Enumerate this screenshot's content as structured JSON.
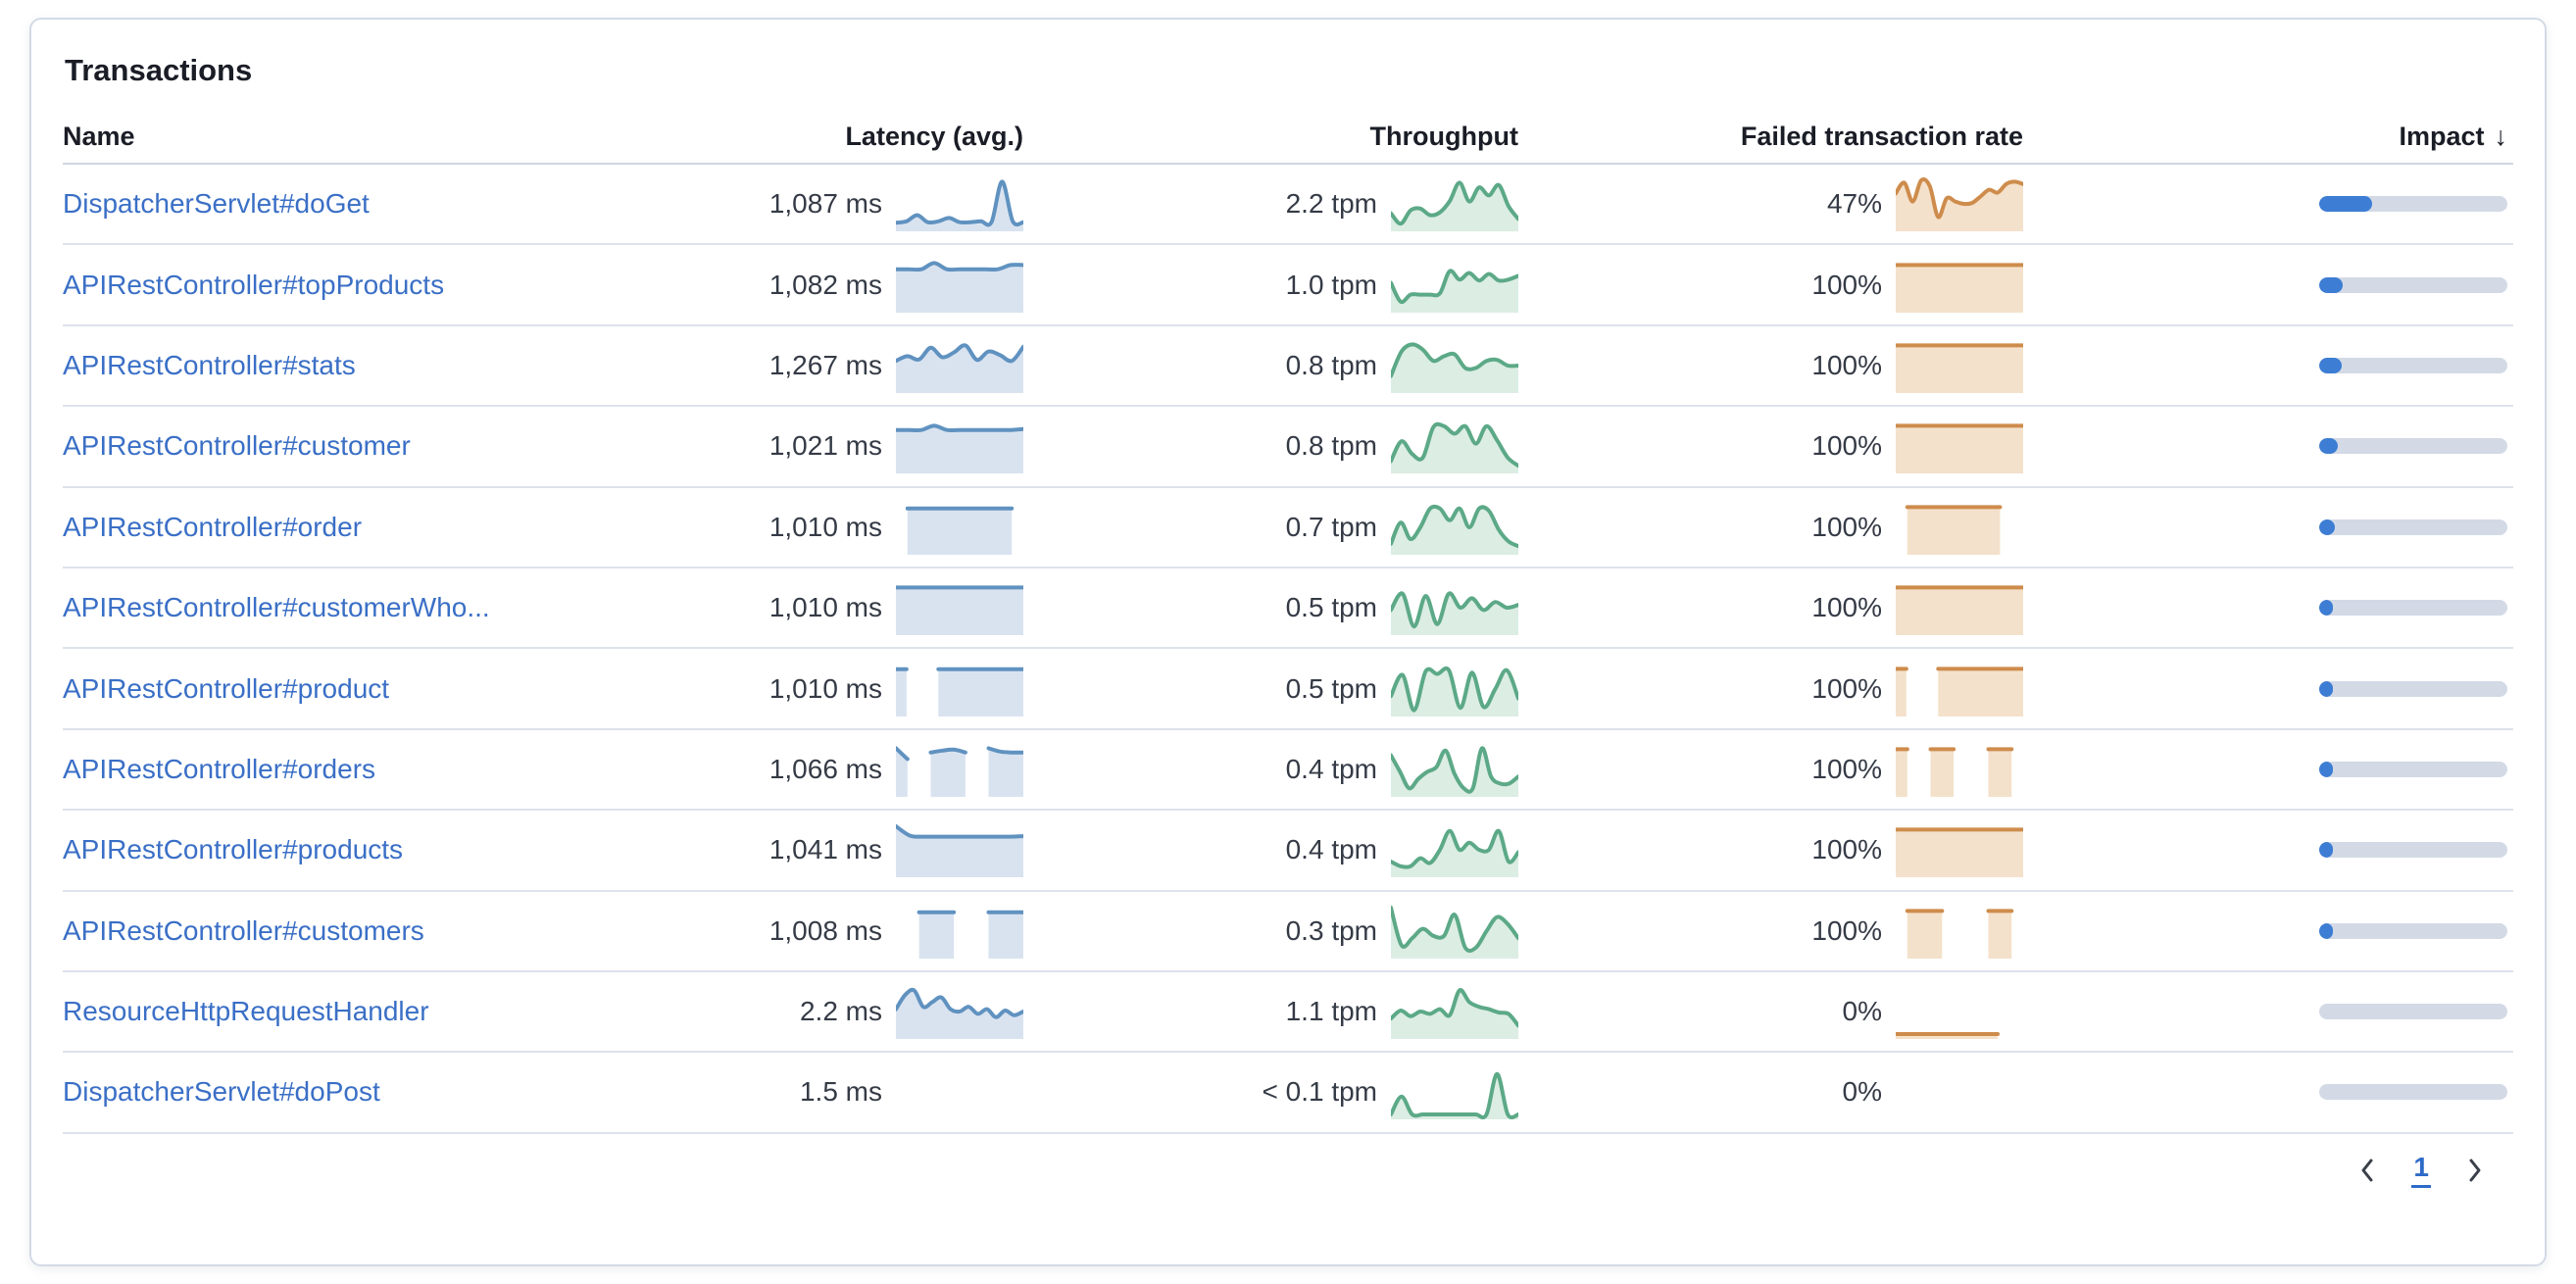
{
  "panel": {
    "title": "Transactions"
  },
  "columns": {
    "name": "Name",
    "latency": "Latency (avg.)",
    "throughput": "Throughput",
    "failed": "Failed transaction rate",
    "impact": "Impact",
    "sort_glyph": "↓"
  },
  "colors": {
    "link": "#3a6fc6",
    "latency_line": "#6092C0",
    "latency_fill": "#D9E3F0",
    "throughput_line": "#5CA987",
    "throughput_fill": "#DCEDE4",
    "failed_line": "#CE8C4C",
    "failed_fill": "#F4E1CB",
    "impact_fill": "#3D7DD4",
    "impact_track": "#D3DAE6"
  },
  "rows": [
    {
      "name": "DispatcherServlet#doGet",
      "latency": "1,087 ms",
      "throughput": "2.2 tpm",
      "failed": "47%",
      "impact": 0.28,
      "latency_spark": [
        0.1,
        0.13,
        0.26,
        0.11,
        0.13,
        0.2,
        0.11,
        0.11,
        0.13,
        0.11,
        0.97,
        0.13,
        0.11
      ],
      "throughput_spark": [
        0.3,
        0.08,
        0.36,
        0.4,
        0.26,
        0.32,
        0.56,
        0.95,
        0.55,
        0.85,
        0.68,
        0.9,
        0.45,
        0.18
      ],
      "failed_spark": [
        0.72,
        0.95,
        0.55,
        1.0,
        0.88,
        0.22,
        0.62,
        0.55,
        0.5,
        0.52,
        0.66,
        0.8,
        0.74,
        0.92,
        0.97,
        0.92
      ]
    },
    {
      "name": "APIRestController#topProducts",
      "latency": "1,082 ms",
      "throughput": "1.0 tpm",
      "failed": "100%",
      "impact": 0.125,
      "latency_spark": [
        0.84,
        0.84,
        0.84,
        0.97,
        0.84,
        0.84,
        0.84,
        0.84,
        0.84,
        0.93,
        0.93
      ],
      "throughput_spark": [
        0.55,
        0.15,
        0.3,
        0.3,
        0.3,
        0.33,
        0.8,
        0.62,
        0.76,
        0.6,
        0.74,
        0.6,
        0.62,
        0.7
      ],
      "failed_spark": [
        0.93,
        0.93,
        0.93,
        0.93,
        0.93,
        0.93,
        0.93,
        0.93,
        0.93,
        0.93,
        0.93,
        0.93
      ]
    },
    {
      "name": "APIRestController#stats",
      "latency": "1,267 ms",
      "throughput": "0.8 tpm",
      "failed": "100%",
      "impact": 0.12,
      "latency_spark": [
        0.6,
        0.7,
        0.63,
        0.88,
        0.68,
        0.78,
        0.93,
        0.62,
        0.8,
        0.72,
        0.6,
        0.9
      ],
      "throughput_spark": [
        0.28,
        0.8,
        0.95,
        0.84,
        0.6,
        0.7,
        0.74,
        0.45,
        0.45,
        0.6,
        0.62,
        0.5,
        0.5
      ],
      "failed_spark": [
        0.93,
        0.93,
        0.93,
        0.93,
        0.93,
        0.93,
        0.93,
        0.93,
        0.93,
        0.93,
        0.93,
        0.93
      ]
    },
    {
      "name": "APIRestController#customer",
      "latency": "1,021 ms",
      "throughput": "0.8 tpm",
      "failed": "100%",
      "impact": 0.1,
      "latency_spark": [
        0.84,
        0.84,
        0.84,
        0.93,
        0.84,
        0.84,
        0.84,
        0.84,
        0.84,
        0.84,
        0.86
      ],
      "throughput_spark": [
        0.18,
        0.6,
        0.33,
        0.25,
        0.9,
        0.92,
        0.76,
        0.92,
        0.55,
        0.92,
        0.62,
        0.25,
        0.08
      ],
      "failed_spark": [
        0.93,
        0.93,
        0.93,
        0.93,
        0.93,
        0.93,
        0.93,
        0.93,
        0.93,
        0.93,
        0.93,
        0.93
      ]
    },
    {
      "name": "APIRestController#order",
      "latency": "1,010 ms",
      "throughput": "0.7 tpm",
      "failed": "100%",
      "impact": 0.085,
      "latency_spark": [
        null,
        0.9,
        0.9,
        0.9,
        0.9,
        0.9,
        0.9,
        0.9,
        0.9,
        0.9,
        0.9,
        null
      ],
      "throughput_spark": [
        0.15,
        0.6,
        0.25,
        0.5,
        0.9,
        0.9,
        0.65,
        0.9,
        0.5,
        0.9,
        0.85,
        0.45,
        0.2,
        0.1
      ],
      "failed_spark": [
        null,
        0.93,
        0.93,
        0.93,
        0.93,
        0.93,
        0.93,
        0.93,
        0.93,
        0.93,
        null,
        null
      ]
    },
    {
      "name": "APIRestController#customerWho...",
      "latency": "1,010 ms",
      "throughput": "0.5 tpm",
      "failed": "100%",
      "impact": 0.07,
      "latency_spark": [
        0.93,
        0.93,
        0.93,
        0.93,
        0.93,
        0.93,
        0.93,
        0.93,
        0.93,
        0.93,
        0.93,
        0.93
      ],
      "throughput_spark": [
        0.45,
        0.8,
        0.1,
        0.75,
        0.15,
        0.8,
        0.5,
        0.7,
        0.45,
        0.62,
        0.5,
        0.56
      ],
      "failed_spark": [
        0.93,
        0.93,
        0.93,
        0.93,
        0.93,
        0.93,
        0.93,
        0.93,
        0.93,
        0.93,
        0.93,
        0.93
      ]
    },
    {
      "name": "APIRestController#product",
      "latency": "1,010 ms",
      "throughput": "0.5 tpm",
      "failed": "100%",
      "impact": 0.065,
      "latency_spark": [
        0.92,
        0.92,
        null,
        null,
        0.92,
        0.92,
        0.92,
        0.92,
        0.92,
        0.92,
        0.92,
        0.92,
        0.92
      ],
      "throughput_spark": [
        0.35,
        0.8,
        0.05,
        0.88,
        0.82,
        0.9,
        0.1,
        0.85,
        0.12,
        0.5,
        0.9,
        0.3
      ],
      "failed_spark": [
        0.93,
        0.93,
        null,
        null,
        0.93,
        0.93,
        0.93,
        0.93,
        0.93,
        0.93,
        0.93,
        0.93,
        0.93
      ]
    },
    {
      "name": "APIRestController#orders",
      "latency": "1,066 ms",
      "throughput": "0.4 tpm",
      "failed": "100%",
      "impact": 0.055,
      "latency_spark": [
        0.95,
        0.72,
        null,
        0.86,
        0.9,
        0.92,
        0.86,
        null,
        0.95,
        0.88,
        0.86,
        0.86
      ],
      "throughput_spark": [
        0.8,
        0.45,
        0.1,
        0.3,
        0.45,
        0.55,
        0.9,
        0.4,
        0.1,
        0.1,
        0.95,
        0.35,
        0.2,
        0.2,
        0.35
      ],
      "failed_spark": [
        0.93,
        0.93,
        null,
        0.93,
        0.93,
        0.93,
        null,
        null,
        0.93,
        0.93,
        0.93,
        null
      ]
    },
    {
      "name": "APIRestController#products",
      "latency": "1,041 ms",
      "throughput": "0.4 tpm",
      "failed": "100%",
      "impact": 0.05,
      "latency_spark": [
        1.0,
        0.8,
        0.78,
        0.78,
        0.78,
        0.78,
        0.78,
        0.78,
        0.78,
        0.79
      ],
      "throughput_spark": [
        0.25,
        0.15,
        0.15,
        0.32,
        0.22,
        0.5,
        0.9,
        0.5,
        0.65,
        0.5,
        0.5,
        0.9,
        0.25,
        0.45
      ],
      "failed_spark": [
        0.93,
        0.93,
        0.93,
        0.93,
        0.93,
        0.93,
        0.93,
        0.93,
        0.93,
        0.93,
        0.93,
        0.93
      ]
    },
    {
      "name": "APIRestController#customers",
      "latency": "1,008 ms",
      "throughput": "0.3 tpm",
      "failed": "100%",
      "impact": 0.04,
      "latency_spark": [
        null,
        null,
        0.9,
        0.9,
        0.9,
        0.9,
        null,
        null,
        0.9,
        0.9,
        0.9,
        0.9
      ],
      "throughput_spark": [
        1.0,
        0.2,
        0.35,
        0.55,
        0.4,
        0.4,
        0.85,
        0.15,
        0.15,
        0.5,
        0.8,
        0.65,
        0.35
      ],
      "failed_spark": [
        null,
        0.93,
        0.93,
        0.93,
        0.93,
        null,
        null,
        null,
        0.93,
        0.93,
        0.93,
        null
      ]
    },
    {
      "name": "ResourceHttpRequestHandler",
      "latency": "2.2 ms",
      "throughput": "1.1 tpm",
      "failed": "0%",
      "impact": 0,
      "latency_spark": [
        0.55,
        0.85,
        0.95,
        0.6,
        0.7,
        0.8,
        0.55,
        0.5,
        0.6,
        0.45,
        0.55,
        0.38,
        0.52,
        0.42,
        0.5
      ],
      "throughput_spark": [
        0.35,
        0.52,
        0.4,
        0.5,
        0.45,
        0.55,
        0.42,
        0.95,
        0.7,
        0.6,
        0.55,
        0.48,
        0.45,
        0.2
      ],
      "failed_spark": [
        0.02,
        0.02,
        0.02,
        0.02,
        0.02,
        0.02,
        0.02,
        0.02,
        0.02,
        null,
        null
      ]
    },
    {
      "name": "DispatcherServlet#doPost",
      "latency": "1.5 ms",
      "throughput": "< 0.1 tpm",
      "failed": "0%",
      "impact": 0,
      "latency_spark": null,
      "throughput_spark": [
        0.02,
        0.4,
        0.02,
        0.02,
        0.02,
        0.02,
        0.02,
        0.02,
        0.02,
        0.02,
        0.88,
        0.02,
        0.02
      ],
      "failed_spark": null
    }
  ],
  "pagination": {
    "current_page": "1"
  }
}
